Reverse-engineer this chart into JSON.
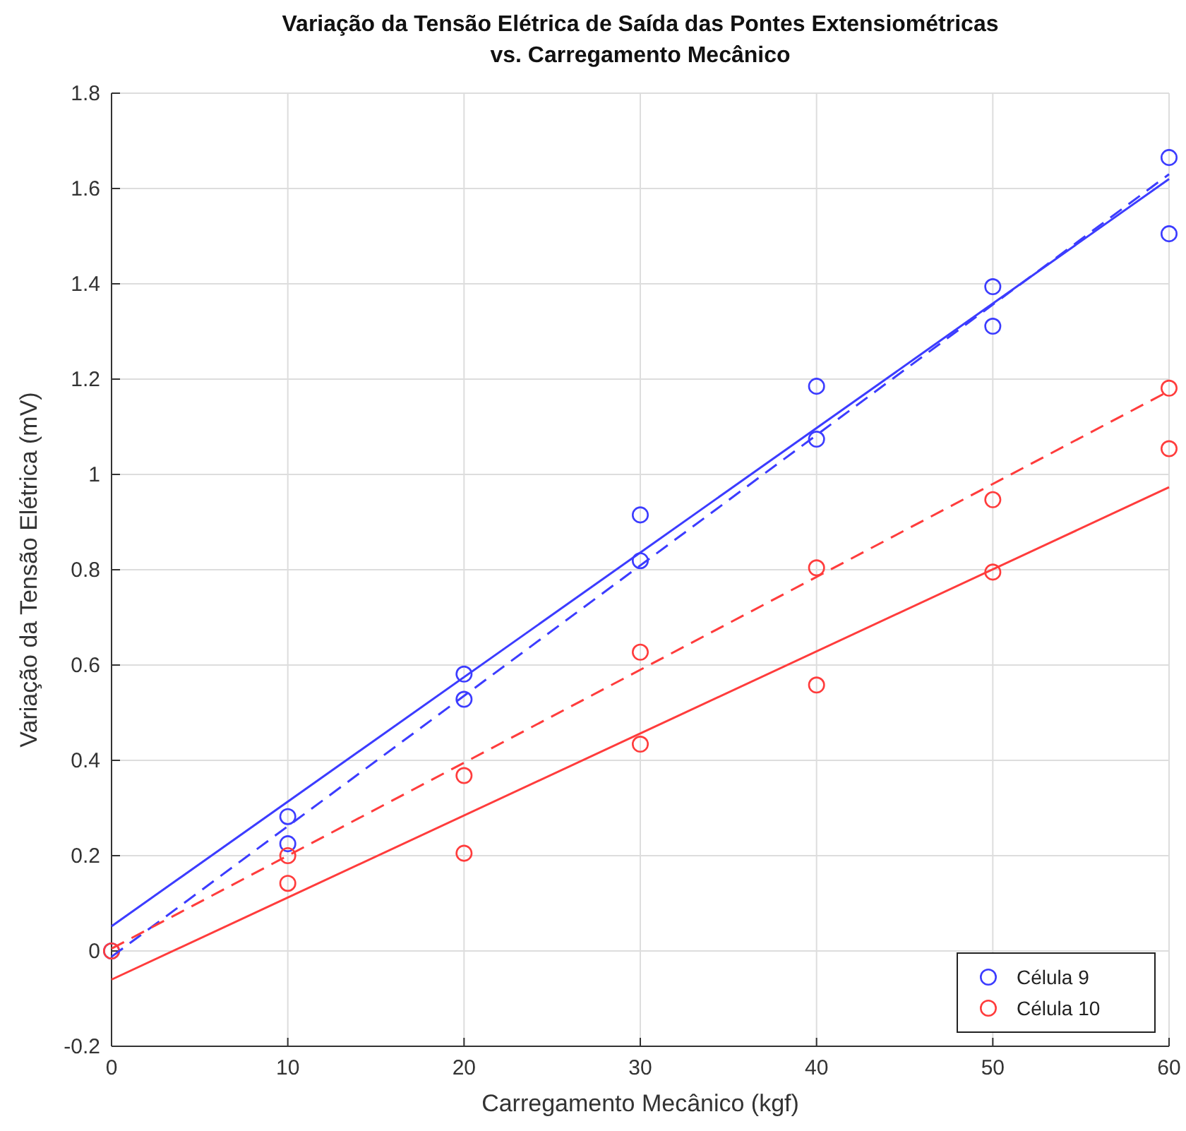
{
  "chart_data": {
    "type": "scatter",
    "title": "Variação da Tensão Elétrica de Saída das Pontes Extensiométricas\nvs. Carregamento Mecânico",
    "xlabel": "Carregamento Mecânico (kgf)",
    "ylabel": "Variação da Tensão Elétrica (mV)",
    "xlim": [
      0,
      60
    ],
    "xticks": [
      0,
      10,
      20,
      30,
      40,
      50,
      60
    ],
    "ylim": [
      -0.2,
      1.8
    ],
    "yticks": [
      -0.2,
      0,
      0.2,
      0.4,
      0.6,
      0.8,
      1,
      1.2,
      1.4,
      1.6,
      1.8
    ],
    "grid": true,
    "legend": "bottom right",
    "marker": "circle",
    "series": [
      {
        "name": "Célula 9",
        "color": "#3c3cff",
        "x": [
          0,
          10,
          10,
          20,
          20,
          30,
          30,
          40,
          40,
          50,
          50,
          60,
          60
        ],
        "values": [
          0,
          0.282,
          0.225,
          0.581,
          0.528,
          0.915,
          0.819,
          1.185,
          1.074,
          1.394,
          1.311,
          1.665,
          1.505
        ]
      },
      {
        "name": "Célula 10",
        "color": "#ff3c3c",
        "x": [
          0,
          10,
          10,
          20,
          20,
          30,
          30,
          40,
          40,
          50,
          50,
          60,
          60
        ],
        "values": [
          0,
          0.2,
          0.142,
          0.368,
          0.205,
          0.627,
          0.434,
          0.804,
          0.558,
          0.947,
          0.795,
          1.181,
          1.054
        ]
      },
      {
        "type": "line",
        "color": "#3c3cff",
        "line_style": "solid",
        "marker": "none",
        "x": [
          0,
          60
        ],
        "values": [
          0.052,
          1.62
        ]
      },
      {
        "type": "line",
        "color": "#3c3cff",
        "line_style": "dashed",
        "marker": "none",
        "x": [
          0,
          60
        ],
        "values": [
          -0.012,
          1.63
        ]
      },
      {
        "type": "line",
        "color": "#ff3c3c",
        "line_style": "dashed",
        "marker": "none",
        "x": [
          0,
          60
        ],
        "values": [
          0.005,
          1.175
        ]
      },
      {
        "type": "line",
        "color": "#ff3c3c",
        "line_style": "solid",
        "marker": "none",
        "x": [
          0,
          60
        ],
        "values": [
          -0.06,
          0.973
        ]
      }
    ]
  }
}
